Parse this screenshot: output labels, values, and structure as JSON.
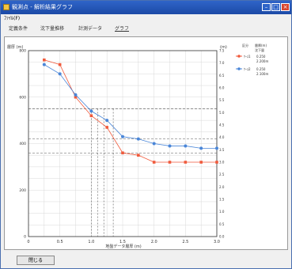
{
  "window": {
    "title": "観測点 - 解析結果グラフ",
    "menu": "ﾌｧｲﾙ(F)"
  },
  "tabs": [
    {
      "label": "定義条件",
      "active": false
    },
    {
      "label": "沈下量推移",
      "active": false
    },
    {
      "label": "計測データ",
      "active": false
    },
    {
      "label": "グラフ",
      "active": true
    }
  ],
  "status": {
    "button_label": "閉じる"
  },
  "colors": {
    "series_a": "#f05a3c",
    "series_b": "#4a86d8",
    "ref_line": "#555555"
  },
  "chart_data": {
    "type": "line",
    "ylabel_left": "層厚 (m)",
    "ylabel_right": "(m)",
    "xlabel": "地盤データ層厚 (m)",
    "x_ticks": [
      "0",
      "0.5",
      "1.0",
      "1.5",
      "2.0",
      "2.5",
      "3.0"
    ],
    "y_ticks_left": [
      "0",
      "200",
      "400",
      "600",
      "800"
    ],
    "y_ticks_right": [
      "0.0",
      "0.5",
      "1.0",
      "1.5",
      "2.0",
      "2.5",
      "3.0",
      "3.5",
      "4.0",
      "4.5",
      "5.0",
      "5.5",
      "6.0",
      "6.5",
      "7.0",
      "7.5"
    ],
    "xlim": [
      0,
      3.0
    ],
    "ylim": [
      0,
      800
    ],
    "legend_header": [
      "区分",
      "層厚(m)",
      "沈下量"
    ],
    "legend": [
      {
        "name": "ｹｰｽ1",
        "value": "0.250",
        "extra": "2.200m"
      },
      {
        "name": "ｹｰｽ2",
        "value": "0.250",
        "extra": "2.100m"
      }
    ],
    "series": [
      {
        "name": "ｹｰｽ1",
        "color": "#f05a3c",
        "x": [
          0.25,
          0.5,
          0.75,
          1.0,
          1.25,
          1.5,
          1.75,
          2.0,
          2.25,
          2.5,
          2.75,
          3.0
        ],
        "y": [
          760,
          740,
          600,
          520,
          470,
          360,
          350,
          320,
          320,
          320,
          320,
          320
        ]
      },
      {
        "name": "ｹｰｽ2",
        "color": "#4a86d8",
        "x": [
          0.25,
          0.5,
          0.75,
          1.0,
          1.25,
          1.5,
          1.75,
          2.0,
          2.25,
          2.5,
          2.75,
          3.0
        ],
        "y": [
          740,
          700,
          610,
          540,
          500,
          430,
          420,
          400,
          390,
          390,
          380,
          380
        ]
      }
    ],
    "ref_h": [
      550,
      420,
      360
    ],
    "ref_v": [
      1.0,
      1.1,
      1.2,
      1.35
    ],
    "grid": true
  }
}
